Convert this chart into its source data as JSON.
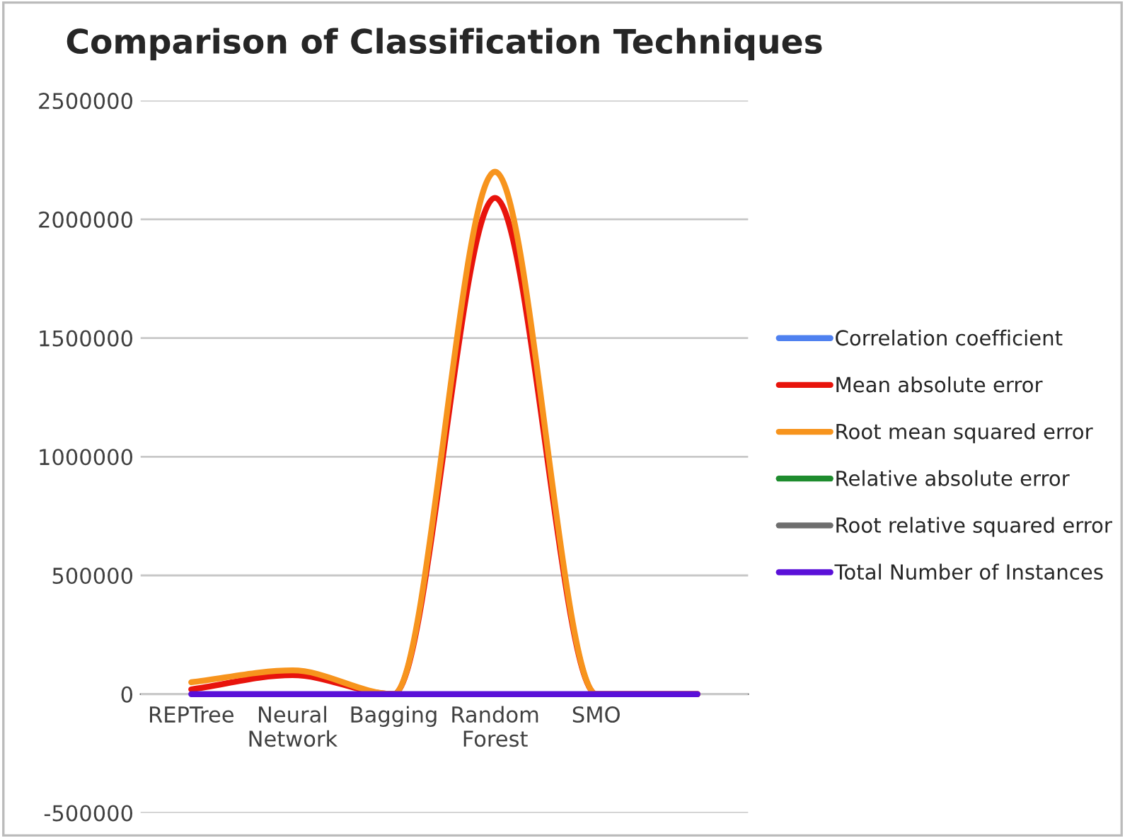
{
  "chart_data": {
    "type": "line",
    "title": "Comparison of Classification Techniques",
    "categories": [
      "REPTree",
      "Neural\nNetwork",
      "Bagging",
      "Random\nForest",
      "SMO",
      null
    ],
    "series": [
      {
        "name": "Correlation coefficient",
        "color": "#4f81f0",
        "values": [
          null,
          null,
          null,
          null,
          null,
          null
        ]
      },
      {
        "name": "Mean absolute error",
        "color": "#e8140c",
        "values": [
          20000,
          80000,
          0,
          2090000,
          0,
          0
        ]
      },
      {
        "name": "Root mean squared error",
        "color": "#f7941d",
        "values": [
          50000,
          100000,
          0,
          2200000,
          0,
          0
        ]
      },
      {
        "name": "Relative absolute error",
        "color": "#1e8c2e",
        "values": [
          null,
          null,
          null,
          null,
          null,
          null
        ]
      },
      {
        "name": "Root relative squared error",
        "color": "#6e6e6e",
        "values": [
          null,
          null,
          null,
          null,
          null,
          null
        ]
      },
      {
        "name": "Total Number of Instances",
        "color": "#5a10d8",
        "values": [
          0,
          0,
          0,
          0,
          0,
          0
        ]
      }
    ],
    "ylim": [
      -500000,
      2500000
    ],
    "yticks": [
      -500000,
      0,
      500000,
      1000000,
      1500000,
      2000000,
      2500000
    ],
    "grid": "y",
    "legend": "right",
    "marker": "none",
    "line_style": "solid"
  }
}
